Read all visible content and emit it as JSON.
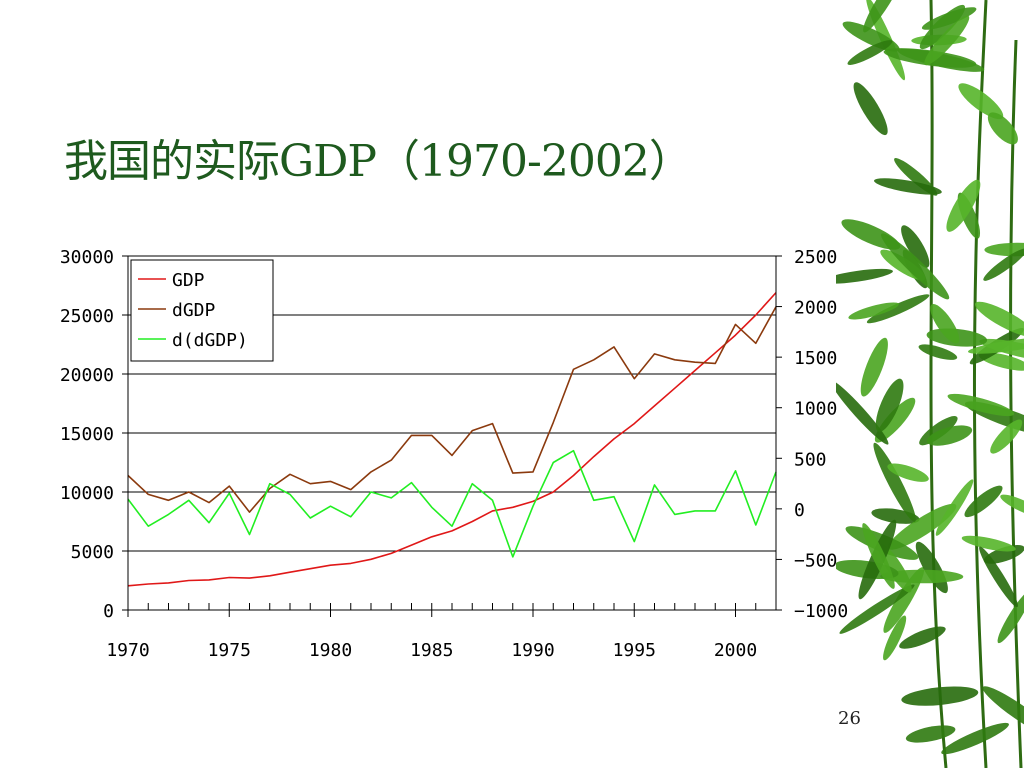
{
  "slide": {
    "title": "我国的实际GDP（1970-2002）",
    "page_number": "26"
  },
  "colors": {
    "gdp": "#e01818",
    "dgdp": "#8b3a0e",
    "ddgdp": "#22ee22",
    "title": "#1e5a1e"
  },
  "chart_data": {
    "type": "line",
    "title": "",
    "xlabel": "",
    "ylabel_left": "",
    "ylabel_right": "",
    "x": [
      1970,
      1971,
      1972,
      1973,
      1974,
      1975,
      1976,
      1977,
      1978,
      1979,
      1980,
      1981,
      1982,
      1983,
      1984,
      1985,
      1986,
      1987,
      1988,
      1989,
      1990,
      1991,
      1992,
      1993,
      1994,
      1995,
      1996,
      1997,
      1998,
      1999,
      2000,
      2001,
      2002
    ],
    "xlim": [
      1970,
      2002
    ],
    "x_ticks": [
      1970,
      1975,
      1980,
      1985,
      1990,
      1995,
      2000
    ],
    "left_axis": {
      "ylim": [
        0,
        30000
      ],
      "ticks": [
        0,
        5000,
        10000,
        15000,
        20000,
        25000,
        30000
      ]
    },
    "right_axis": {
      "ylim": [
        -1000,
        2500
      ],
      "ticks": [
        -1000,
        -500,
        0,
        500,
        1000,
        1500,
        2000,
        2500
      ]
    },
    "grid": "horizontal",
    "legend_position": "top-left",
    "series": [
      {
        "name": "GDP",
        "axis": "left",
        "color_key": "gdp",
        "values": [
          2050,
          2200,
          2300,
          2500,
          2550,
          2750,
          2700,
          2900,
          3200,
          3500,
          3800,
          3950,
          4300,
          4800,
          5500,
          6200,
          6700,
          7500,
          8400,
          8700,
          9200,
          10000,
          11400,
          13000,
          14500,
          15800,
          17300,
          18800,
          20300,
          21800,
          23300,
          25000,
          26900
        ]
      },
      {
        "name": "dGDP",
        "axis": "left",
        "color_key": "dgdp",
        "values": [
          11400,
          9800,
          9300,
          10000,
          9100,
          10500,
          8300,
          10300,
          11500,
          10700,
          10900,
          10200,
          11700,
          12700,
          14800,
          14800,
          13100,
          15200,
          15800,
          11600,
          11700,
          15900,
          20400,
          21200,
          22300,
          19600,
          21700,
          21200,
          21000,
          20900,
          24200,
          22600,
          25700
        ]
      },
      {
        "name": "d(dGDP)",
        "axis": "left",
        "color_key": "ddgdp",
        "values": [
          9400,
          7100,
          8100,
          9300,
          7400,
          9900,
          6400,
          10700,
          9800,
          7800,
          8800,
          7900,
          10000,
          9500,
          10800,
          8700,
          7100,
          10700,
          9300,
          4500,
          8800,
          12500,
          13500,
          9300,
          9600,
          5800,
          10600,
          8100,
          8400,
          8400,
          11800,
          7200,
          11700
        ]
      }
    ]
  }
}
